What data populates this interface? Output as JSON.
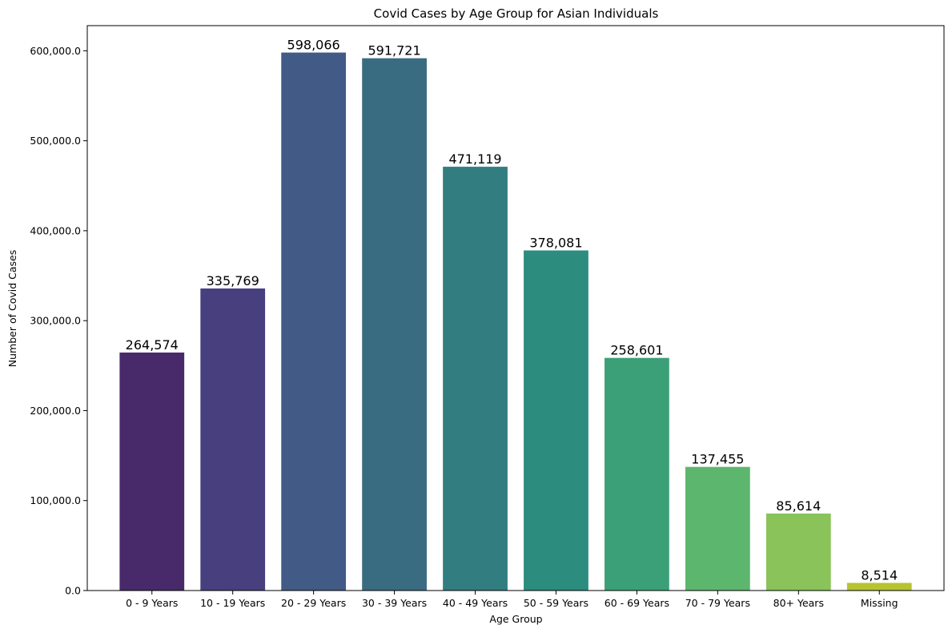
{
  "chart_data": {
    "type": "bar",
    "title": "Covid Cases by Age Group for Asian Individuals",
    "xlabel": "Age Group",
    "ylabel": "Number of Covid Cases",
    "categories": [
      "0 - 9 Years",
      "10 - 19 Years",
      "20 - 29 Years",
      "30 - 39 Years",
      "40 - 49 Years",
      "50 - 59 Years",
      "60 - 69 Years",
      "70 - 79 Years",
      "80+ Years",
      "Missing"
    ],
    "values": [
      264574,
      335769,
      598066,
      591721,
      471119,
      378081,
      258601,
      137455,
      85614,
      8514
    ],
    "value_labels": [
      "264,574",
      "335,769",
      "598,066",
      "591,721",
      "471,119",
      "378,081",
      "258,601",
      "137,455",
      "85,614",
      "8,514"
    ],
    "colors": [
      "#482a6a",
      "#473f7e",
      "#415b86",
      "#3a6c81",
      "#327d80",
      "#2c8c7d",
      "#3ba077",
      "#5db66d",
      "#89c35a",
      "#b6c42f"
    ],
    "yticks": [
      0,
      100000,
      200000,
      300000,
      400000,
      500000,
      600000
    ],
    "ytick_labels": [
      "0.0",
      "100,000.0",
      "200,000.0",
      "300,000.0",
      "400,000.0",
      "500,000.0",
      "600,000.0"
    ],
    "ylim": [
      0,
      627969
    ],
    "grid": false,
    "legend": "none"
  }
}
